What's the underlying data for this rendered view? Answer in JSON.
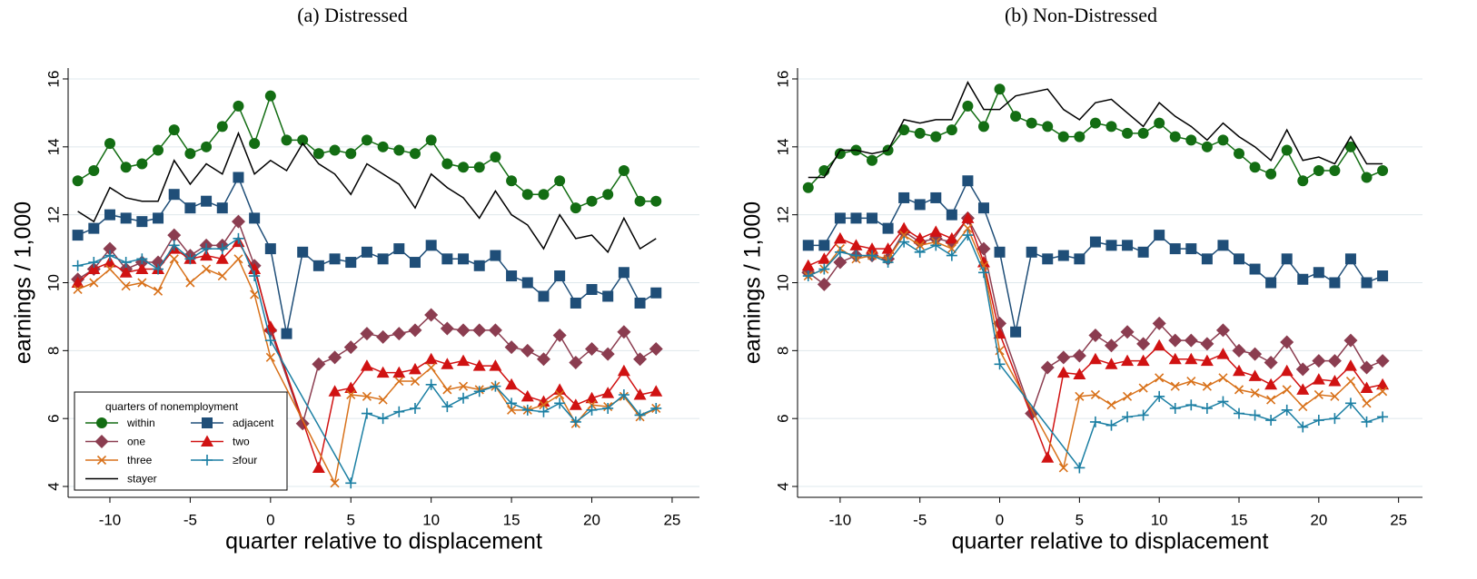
{
  "chart_data": [
    {
      "type": "line",
      "title": "(a) Distressed",
      "x_label": "quarter relative to displacement",
      "y_label": "earnings / 1,000",
      "xlim": [
        -12.6,
        26.7
      ],
      "ylim": [
        3.68,
        16.32
      ],
      "xticks": [
        -10,
        -5,
        0,
        5,
        10,
        15,
        20,
        25
      ],
      "yticks": [
        4,
        6,
        8,
        10,
        12,
        14,
        16
      ],
      "grid": true,
      "legend": "lower left",
      "legend_title": "quarters of nonemployment",
      "x": [
        -12,
        -11,
        -10,
        -9,
        -8,
        -7,
        -6,
        -5,
        -4,
        -3,
        -2,
        -1,
        0,
        1,
        2,
        3,
        4,
        5,
        6,
        7,
        8,
        9,
        10,
        11,
        12,
        13,
        14,
        15,
        16,
        17,
        18,
        19,
        20,
        21,
        22,
        23,
        24
      ],
      "series": [
        {
          "name": "within",
          "color": "#136d13",
          "marker": "circle",
          "values": [
            13.0,
            13.3,
            14.1,
            13.4,
            13.5,
            13.9,
            14.5,
            13.8,
            14.0,
            14.6,
            15.2,
            14.1,
            15.5,
            14.2,
            14.2,
            13.8,
            13.9,
            13.8,
            14.2,
            14.0,
            13.9,
            13.8,
            14.2,
            13.5,
            13.4,
            13.4,
            13.7,
            13.0,
            12.6,
            12.6,
            13.0,
            12.2,
            12.4,
            12.6,
            13.3,
            12.4,
            12.4
          ]
        },
        {
          "name": "adjacent",
          "color": "#1f4e78",
          "marker": "square",
          "values": [
            11.4,
            11.6,
            12.0,
            11.9,
            11.8,
            11.9,
            12.6,
            12.2,
            12.4,
            12.2,
            13.1,
            11.9,
            11.0,
            8.5,
            10.9,
            10.5,
            10.7,
            10.6,
            10.9,
            10.7,
            11.0,
            10.6,
            11.1,
            10.7,
            10.7,
            10.5,
            10.8,
            10.2,
            10.0,
            9.6,
            10.2,
            9.4,
            9.8,
            9.6,
            10.3,
            9.4,
            9.7
          ]
        },
        {
          "name": "one",
          "color": "#8b3d50",
          "marker": "diamond",
          "x": [
            -12,
            -11,
            -10,
            -9,
            -8,
            -7,
            -6,
            -5,
            -4,
            -3,
            -2,
            -1,
            0,
            2,
            3,
            4,
            5,
            6,
            7,
            8,
            9,
            10,
            11,
            12,
            13,
            14,
            15,
            16,
            17,
            18,
            19,
            20,
            21,
            22,
            23,
            24
          ],
          "values": [
            10.1,
            10.4,
            11.0,
            10.4,
            10.6,
            10.6,
            11.4,
            10.8,
            11.1,
            11.1,
            11.8,
            10.5,
            8.6,
            5.85,
            7.6,
            7.8,
            8.1,
            8.5,
            8.4,
            8.5,
            8.6,
            9.05,
            8.65,
            8.6,
            8.6,
            8.6,
            8.1,
            8.0,
            7.75,
            8.45,
            7.65,
            8.05,
            7.9,
            8.55,
            7.75,
            8.05
          ]
        },
        {
          "name": "two",
          "color": "#d01212",
          "marker": "triangle",
          "x": [
            -12,
            -11,
            -10,
            -9,
            -8,
            -7,
            -6,
            -5,
            -4,
            -3,
            -2,
            -1,
            0,
            3,
            4,
            5,
            6,
            7,
            8,
            9,
            10,
            11,
            12,
            13,
            14,
            15,
            16,
            17,
            18,
            19,
            20,
            21,
            22,
            23,
            24
          ],
          "values": [
            10.0,
            10.4,
            10.6,
            10.3,
            10.4,
            10.4,
            11.0,
            10.7,
            10.8,
            10.7,
            11.2,
            10.4,
            8.7,
            4.55,
            6.8,
            6.9,
            7.55,
            7.35,
            7.35,
            7.45,
            7.75,
            7.6,
            7.7,
            7.55,
            7.55,
            7.0,
            6.65,
            6.5,
            6.85,
            6.4,
            6.6,
            6.75,
            7.4,
            6.7,
            6.8
          ]
        },
        {
          "name": "three",
          "color": "#d8711a",
          "marker": "x",
          "x": [
            -12,
            -11,
            -10,
            -9,
            -8,
            -7,
            -6,
            -5,
            -4,
            -3,
            -2,
            -1,
            0,
            4,
            5,
            6,
            7,
            8,
            9,
            10,
            11,
            12,
            13,
            14,
            15,
            16,
            17,
            18,
            19,
            20,
            21,
            22,
            23,
            24
          ],
          "values": [
            9.8,
            10.0,
            10.4,
            9.9,
            10.0,
            9.75,
            10.7,
            10.0,
            10.4,
            10.2,
            10.7,
            9.65,
            7.8,
            4.1,
            6.7,
            6.65,
            6.55,
            7.1,
            7.1,
            7.5,
            6.85,
            6.95,
            6.85,
            6.95,
            6.25,
            6.25,
            6.4,
            6.7,
            5.85,
            6.4,
            6.35,
            6.65,
            6.05,
            6.3
          ]
        },
        {
          "name": "≥four",
          "color": "#1b7fa3",
          "marker": "plus",
          "x": [
            -12,
            -11,
            -10,
            -9,
            -8,
            -7,
            -6,
            -5,
            -4,
            -3,
            -2,
            -1,
            0,
            5,
            6,
            7,
            8,
            9,
            10,
            11,
            12,
            13,
            14,
            15,
            16,
            17,
            18,
            19,
            20,
            21,
            22,
            23,
            24
          ],
          "values": [
            10.5,
            10.6,
            10.8,
            10.6,
            10.7,
            10.4,
            11.1,
            10.7,
            11.0,
            11.0,
            11.3,
            10.2,
            8.3,
            4.1,
            6.15,
            6.0,
            6.2,
            6.3,
            7.0,
            6.35,
            6.6,
            6.8,
            6.95,
            6.45,
            6.25,
            6.2,
            6.45,
            5.9,
            6.25,
            6.3,
            6.7,
            6.1,
            6.3
          ]
        },
        {
          "name": "stayer",
          "color": "#000000",
          "marker": "none",
          "values": [
            12.1,
            11.8,
            12.8,
            12.5,
            12.4,
            12.4,
            13.6,
            12.9,
            13.5,
            13.2,
            14.4,
            13.2,
            13.6,
            13.3,
            14.1,
            13.5,
            13.2,
            12.6,
            13.5,
            13.2,
            12.9,
            12.2,
            13.2,
            12.8,
            12.5,
            11.9,
            12.7,
            12.0,
            11.7,
            11.0,
            12.0,
            11.3,
            11.4,
            10.9,
            11.9,
            11.0,
            11.3
          ]
        }
      ]
    },
    {
      "type": "line",
      "title": "(b) Non-Distressed",
      "x_label": "quarter relative to displacement",
      "y_label": "earnings / 1,000",
      "xlim": [
        -12.67,
        26.5
      ],
      "ylim": [
        3.68,
        16.32
      ],
      "xticks": [
        -10,
        -5,
        0,
        5,
        10,
        15,
        20,
        25
      ],
      "yticks": [
        4,
        6,
        8,
        10,
        12,
        14,
        16
      ],
      "grid": true,
      "legend": false,
      "x": [
        -12,
        -11,
        -10,
        -9,
        -8,
        -7,
        -6,
        -5,
        -4,
        -3,
        -2,
        -1,
        0,
        1,
        2,
        3,
        4,
        5,
        6,
        7,
        8,
        9,
        10,
        11,
        12,
        13,
        14,
        15,
        16,
        17,
        18,
        19,
        20,
        21,
        22,
        23,
        24
      ],
      "series": [
        {
          "color": "#136d13",
          "marker": "circle",
          "values": [
            12.8,
            13.3,
            13.8,
            13.9,
            13.6,
            13.9,
            14.5,
            14.4,
            14.3,
            14.5,
            15.2,
            14.6,
            15.7,
            14.9,
            14.7,
            14.6,
            14.3,
            14.3,
            14.7,
            14.6,
            14.4,
            14.4,
            14.7,
            14.3,
            14.2,
            14.0,
            14.2,
            13.8,
            13.4,
            13.2,
            13.9,
            13.0,
            13.3,
            13.3,
            14.0,
            13.1,
            13.3
          ]
        },
        {
          "color": "#1f4e78",
          "marker": "square",
          "values": [
            11.1,
            11.1,
            11.9,
            11.9,
            11.9,
            11.6,
            12.5,
            12.3,
            12.5,
            12.0,
            13.0,
            12.2,
            10.9,
            8.55,
            10.9,
            10.7,
            10.8,
            10.7,
            11.2,
            11.1,
            11.1,
            10.9,
            11.4,
            11.0,
            11.0,
            10.7,
            11.1,
            10.7,
            10.4,
            10.0,
            10.7,
            10.1,
            10.3,
            10.0,
            10.7,
            10.0,
            10.2
          ]
        },
        {
          "color": "#8b3d50",
          "marker": "diamond",
          "x": [
            -12,
            -11,
            -10,
            -9,
            -8,
            -7,
            -6,
            -5,
            -4,
            -3,
            -2,
            -1,
            0,
            2,
            3,
            4,
            5,
            6,
            7,
            8,
            9,
            10,
            11,
            12,
            13,
            14,
            15,
            16,
            17,
            18,
            19,
            20,
            21,
            22,
            23,
            24
          ],
          "values": [
            10.3,
            9.95,
            10.6,
            10.8,
            10.8,
            10.7,
            11.5,
            11.2,
            11.3,
            11.2,
            11.9,
            11.0,
            8.8,
            6.15,
            7.5,
            7.8,
            7.85,
            8.45,
            8.15,
            8.55,
            8.2,
            8.8,
            8.3,
            8.3,
            8.2,
            8.6,
            8.0,
            7.9,
            7.65,
            8.25,
            7.45,
            7.7,
            7.7,
            8.3,
            7.5,
            7.7
          ]
        },
        {
          "color": "#d01212",
          "marker": "triangle",
          "x": [
            -12,
            -11,
            -10,
            -9,
            -8,
            -7,
            -6,
            -5,
            -4,
            -3,
            -2,
            -1,
            0,
            3,
            4,
            5,
            6,
            7,
            8,
            9,
            10,
            11,
            12,
            13,
            14,
            15,
            16,
            17,
            18,
            19,
            20,
            21,
            22,
            23,
            24
          ],
          "values": [
            10.5,
            10.7,
            11.3,
            11.1,
            11.0,
            11.0,
            11.6,
            11.3,
            11.5,
            11.3,
            11.9,
            10.6,
            8.5,
            4.85,
            7.35,
            7.3,
            7.75,
            7.6,
            7.7,
            7.7,
            8.15,
            7.75,
            7.75,
            7.7,
            7.9,
            7.4,
            7.25,
            7.0,
            7.4,
            6.85,
            7.15,
            7.1,
            7.55,
            6.9,
            7.0
          ]
        },
        {
          "color": "#d8711a",
          "marker": "x",
          "x": [
            -12,
            -11,
            -10,
            -9,
            -8,
            -7,
            -6,
            -5,
            -4,
            -3,
            -2,
            -1,
            0,
            4,
            5,
            6,
            7,
            8,
            9,
            10,
            11,
            12,
            13,
            14,
            15,
            16,
            17,
            18,
            19,
            20,
            21,
            22,
            23,
            24
          ],
          "values": [
            10.2,
            10.4,
            11.0,
            10.7,
            10.8,
            10.7,
            11.4,
            11.1,
            11.2,
            11.0,
            11.6,
            10.5,
            8.0,
            4.55,
            6.65,
            6.7,
            6.4,
            6.65,
            6.9,
            7.2,
            6.95,
            7.1,
            6.95,
            7.2,
            6.85,
            6.75,
            6.55,
            6.85,
            6.35,
            6.7,
            6.65,
            7.1,
            6.45,
            6.8
          ]
        },
        {
          "color": "#1b7fa3",
          "marker": "plus",
          "x": [
            -12,
            -11,
            -10,
            -9,
            -8,
            -7,
            -6,
            -5,
            -4,
            -3,
            -2,
            -1,
            0,
            5,
            6,
            7,
            8,
            9,
            10,
            11,
            12,
            13,
            14,
            15,
            16,
            17,
            18,
            19,
            20,
            21,
            22,
            23,
            24
          ],
          "values": [
            10.2,
            10.4,
            10.9,
            10.8,
            10.8,
            10.6,
            11.2,
            10.9,
            11.1,
            10.8,
            11.4,
            10.3,
            7.6,
            4.55,
            5.9,
            5.8,
            6.05,
            6.1,
            6.65,
            6.3,
            6.4,
            6.3,
            6.5,
            6.15,
            6.1,
            5.95,
            6.25,
            5.75,
            5.95,
            6.0,
            6.45,
            5.9,
            6.05
          ]
        },
        {
          "color": "#000000",
          "marker": "none",
          "values": [
            13.1,
            13.1,
            13.9,
            13.9,
            13.8,
            13.9,
            14.8,
            14.7,
            14.8,
            14.8,
            15.9,
            15.1,
            15.1,
            15.5,
            15.6,
            15.7,
            15.1,
            14.8,
            15.3,
            15.4,
            15.0,
            14.6,
            15.3,
            14.9,
            14.6,
            14.2,
            14.7,
            14.3,
            14.0,
            13.6,
            14.5,
            13.6,
            13.7,
            13.5,
            14.3,
            13.5,
            13.5
          ]
        }
      ]
    }
  ]
}
